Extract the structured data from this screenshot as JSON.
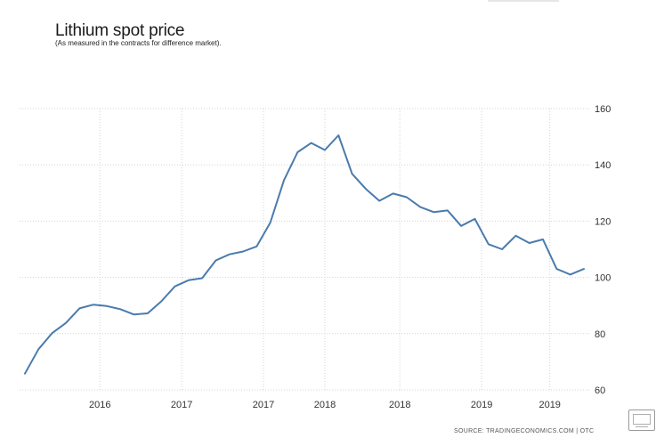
{
  "chart_data": {
    "type": "line",
    "title": "Lithium spot price",
    "subtitle": "(As measured in the contracts for difference market).",
    "xlabel": "",
    "ylabel": "",
    "ylim": [
      60,
      160
    ],
    "yticks": [
      60,
      80,
      100,
      120,
      140,
      160
    ],
    "x_tick_labels": [
      "2016",
      "2017",
      "2017",
      "2018",
      "2018",
      "2019",
      "2019"
    ],
    "x_tick_index": [
      5.5,
      11.5,
      17.5,
      22,
      27.5,
      33.5,
      38.5
    ],
    "grid": true,
    "series": [
      {
        "name": "Lithium spot price",
        "color": "#4a7bac",
        "values": [
          65.8,
          74.5,
          80.2,
          83.8,
          89.0,
          90.3,
          89.8,
          88.7,
          86.8,
          87.2,
          91.5,
          96.8,
          99.0,
          99.7,
          106.0,
          108.2,
          109.2,
          111.0,
          119.5,
          134.5,
          144.5,
          147.8,
          145.3,
          150.5,
          136.8,
          131.5,
          127.2,
          129.8,
          128.5,
          125.0,
          123.2,
          123.8,
          118.3,
          120.8,
          111.8,
          110.0,
          114.8,
          112.2,
          113.5,
          103.0,
          101.0,
          103.0
        ]
      }
    ]
  },
  "source_text": "SOURCE:  TRADINGECONOMICS.COM  |  OTC"
}
